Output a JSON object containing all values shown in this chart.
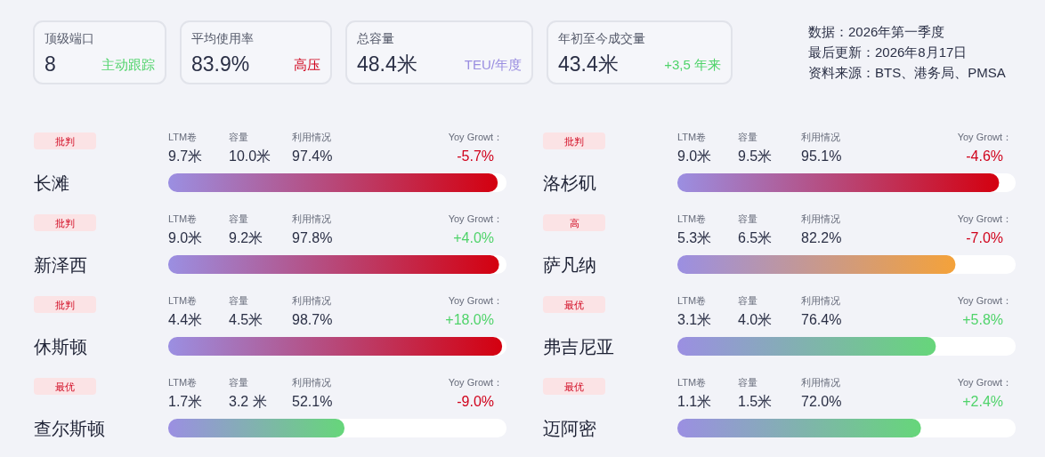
{
  "chart_data": [
    {
      "type": "other",
      "annotations": [
        "顶级端口",
        "8",
        "主动跟踪",
        "平均使用率",
        "83.9%",
        "高压",
        "总容量",
        "48.4米",
        "TEU/年度",
        "年初至今成交量",
        "43.4米",
        "+3,5 年来",
        "数据：2026年第一季度",
        "最后更新：2026年8月17日",
        "资料来源：BTS、港务局、PMSA"
      ]
    },
    {
      "type": "bar",
      "orientation": "horizontal",
      "categories": [
        "长滩",
        "新泽西",
        "休斯顿",
        "查尔斯顿"
      ],
      "values": [
        97.4,
        97.8,
        98.7,
        52.1
      ],
      "value_labels": [
        "97.4%",
        "97.8%",
        "98.7%",
        "52.1%"
      ],
      "colors": [
        "#d4000f",
        "#d4000f",
        "#d4000f",
        "#66d67a"
      ],
      "xlim": [
        0,
        100
      ],
      "annotations": [
        "批判",
        "LTM卷",
        "9.7米",
        "容量",
        "10.0米",
        "利用情况",
        "Yoy Growt：",
        "-5.7%",
        "批判",
        "LTM卷",
        "9.0米",
        "容量",
        "9.2米",
        "利用情况",
        "Yoy Growt：",
        "+4.0%",
        "批判",
        "LTM卷",
        "4.4米",
        "容量",
        "4.5米",
        "利用情况",
        "Yoy Growt：",
        "+18.0%",
        "最优",
        "LTM卷",
        "1.7米",
        "容量",
        "3.2 米",
        "利用情况",
        "Yoy Growt：",
        "-9.0%"
      ]
    },
    {
      "type": "bar",
      "orientation": "horizontal",
      "categories": [
        "洛杉矶",
        "萨凡纳",
        "弗吉尼亚",
        "迈阿密"
      ],
      "values": [
        95.1,
        82.2,
        76.4,
        72.0
      ],
      "value_labels": [
        "95.1%",
        "82.2%",
        "76.4%",
        "72.0%"
      ],
      "colors": [
        "#d4000f",
        "#f4a23a",
        "#66d67a",
        "#66d67a"
      ],
      "xlim": [
        0,
        100
      ],
      "annotations": [
        "批判",
        "LTM卷",
        "9.0米",
        "容量",
        "9.5米",
        "利用情况",
        "Yoy Growt：",
        "-4.6%",
        "高",
        "LTM卷",
        "5.3米",
        "容量",
        "6.5米",
        "利用情况",
        "Yoy Growt：",
        "-7.0%",
        "最优",
        "LTM卷",
        "3.1米",
        "容量",
        "4.0米",
        "利用情况",
        "Yoy Growt：",
        "+5.8%",
        "最优",
        "LTM卷",
        "1.1米",
        "容量",
        "1.5米",
        "利用情况",
        "Yoy Growt：",
        "+2.4%"
      ]
    }
  ]
}
